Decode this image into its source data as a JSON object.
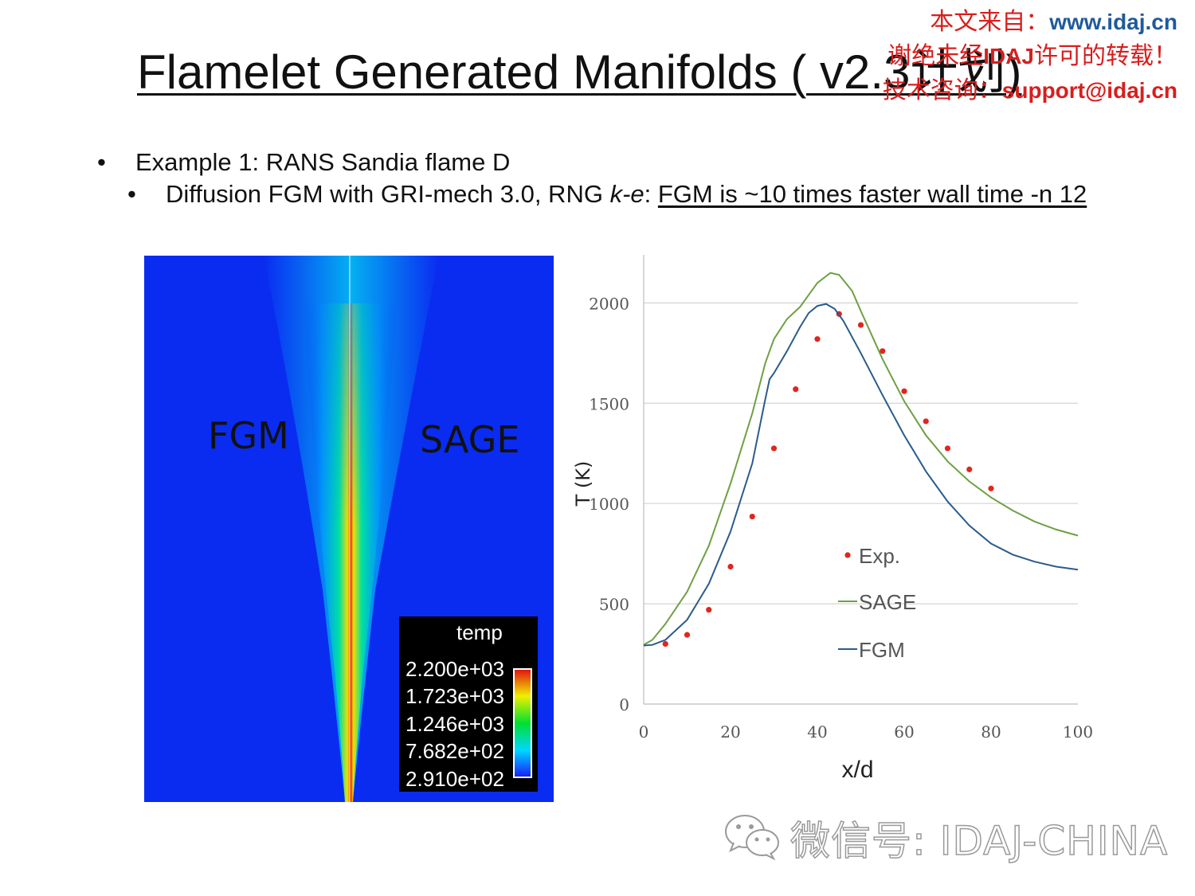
{
  "slide": {
    "title": "Flamelet Generated Manifolds ( v2.3计划)",
    "bullets": [
      {
        "text": "Example 1: RANS Sandia flame D"
      },
      {
        "prefix": "Diffusion FGM with GRI-mech 3.0, RNG ",
        "italic": "k-e",
        "colon": ": ",
        "underlined": "FGM is ~10 times faster wall time -n 12"
      }
    ]
  },
  "watermark": {
    "line1_cn": "本文来自：",
    "line1_url": "www.idaj.cn",
    "line2_a": "谢绝未经",
    "line2_b": "IDAJ",
    "line2_c": "许可的转载！",
    "line3_cn": "技术咨询：",
    "line3_email": "support@idaj.cn"
  },
  "contour": {
    "left_label": "FGM",
    "right_label": "SAGE",
    "legend_title": "temp",
    "legend_values": [
      "2.200e+03",
      "1.723e+03",
      "1.246e+03",
      "7.682e+02",
      "2.910e+02"
    ]
  },
  "chart_data": {
    "type": "line",
    "xlabel": "x/d",
    "ylabel": "T (K)",
    "xlim": [
      0,
      100
    ],
    "ylim": [
      0,
      2200
    ],
    "xticks": [
      "0",
      "20",
      "40",
      "60",
      "80",
      "100"
    ],
    "yticks": [
      "0",
      "500",
      "1000",
      "1500",
      "2000"
    ],
    "grid": "horizontal",
    "legend_position": "center",
    "series": [
      {
        "name": "Exp.",
        "kind": "scatter",
        "color": "#e0261e",
        "x": [
          5,
          10,
          15,
          20,
          25,
          30,
          35,
          40,
          45,
          50,
          55,
          60,
          65,
          70,
          75,
          80
        ],
        "y": [
          300,
          345,
          470,
          685,
          935,
          1275,
          1570,
          1820,
          1945,
          1890,
          1760,
          1560,
          1410,
          1275,
          1170,
          1075
        ]
      },
      {
        "name": "SAGE",
        "kind": "line",
        "color": "#6ea043",
        "x": [
          0,
          2,
          5,
          10,
          15,
          20,
          25,
          28,
          30,
          33,
          36,
          38,
          40,
          43,
          45,
          48,
          50,
          55,
          60,
          65,
          70,
          75,
          80,
          85,
          90,
          95,
          100
        ],
        "y": [
          295,
          320,
          400,
          560,
          790,
          1100,
          1450,
          1700,
          1820,
          1920,
          1980,
          2040,
          2100,
          2150,
          2140,
          2060,
          1960,
          1720,
          1510,
          1340,
          1210,
          1110,
          1030,
          965,
          910,
          870,
          840
        ]
      },
      {
        "name": "FGM",
        "kind": "line",
        "color": "#2a5b8c",
        "x": [
          0,
          2,
          5,
          10,
          15,
          20,
          25,
          28,
          29,
          30,
          33,
          36,
          38,
          40,
          42,
          44,
          46,
          50,
          55,
          60,
          65,
          70,
          75,
          80,
          85,
          90,
          95,
          100
        ],
        "y": [
          292,
          295,
          320,
          420,
          600,
          860,
          1200,
          1520,
          1620,
          1650,
          1760,
          1880,
          1950,
          1985,
          1995,
          1970,
          1910,
          1750,
          1540,
          1340,
          1160,
          1010,
          890,
          800,
          745,
          710,
          685,
          670
        ]
      }
    ]
  },
  "footer": {
    "wechat_label": "微信号: IDAJ-CHINA"
  }
}
